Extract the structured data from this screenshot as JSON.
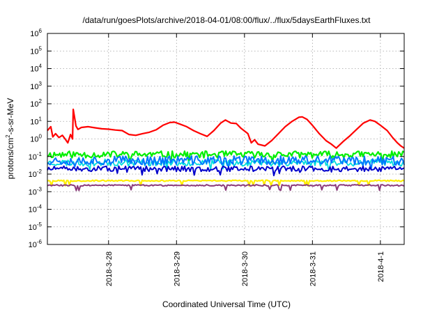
{
  "chart_data": {
    "type": "line",
    "title": "/data/run/goesPlots/archive/2018-04-01/08:00/flux/../flux/5daysEarthFluxes.txt",
    "xlabel": "Coordinated Universal Time (UTC)",
    "ylabel": "protons/cm2-s-sr-MeV",
    "ylabel_parts": {
      "pre": "protons/cm",
      "sup": "2",
      "post": "-s-sr-MeV"
    },
    "yscale": "log",
    "ylim_exponents": [
      -6,
      6
    ],
    "y_tick_base": "10",
    "y_tick_exponents": [
      "-6",
      "-5",
      "-4",
      "-3",
      "-2",
      "-1",
      "0",
      "1",
      "2",
      "3",
      "4",
      "5",
      "6"
    ],
    "x_range_days": [
      27.1,
      32.35
    ],
    "x_ticks": [
      {
        "label": "2018-3-28",
        "day": 28
      },
      {
        "label": "2018-3-29",
        "day": 29
      },
      {
        "label": "2018-3-30",
        "day": 30
      },
      {
        "label": "2018-3-31",
        "day": 31
      },
      {
        "label": "2018-4-1",
        "day": 32
      }
    ],
    "grid": true,
    "legend": "none",
    "series": [
      {
        "color": "#ff0000",
        "width": 2.2,
        "points": [
          [
            27.1,
            3.0
          ],
          [
            27.15,
            5.0
          ],
          [
            27.18,
            1.3
          ],
          [
            27.22,
            2.0
          ],
          [
            27.27,
            1.2
          ],
          [
            27.32,
            1.6
          ],
          [
            27.37,
            0.9
          ],
          [
            27.4,
            0.6
          ],
          [
            27.44,
            1.8
          ],
          [
            27.47,
            1.0
          ],
          [
            27.48,
            48
          ],
          [
            27.52,
            5.5
          ],
          [
            27.55,
            3.5
          ],
          [
            27.6,
            4.5
          ],
          [
            27.7,
            5.0
          ],
          [
            27.8,
            4.3
          ],
          [
            27.9,
            3.8
          ],
          [
            28.0,
            3.6
          ],
          [
            28.1,
            3.2
          ],
          [
            28.2,
            3.0
          ],
          [
            28.3,
            1.8
          ],
          [
            28.4,
            1.6
          ],
          [
            28.5,
            2.0
          ],
          [
            28.6,
            2.4
          ],
          [
            28.7,
            3.3
          ],
          [
            28.8,
            6.0
          ],
          [
            28.9,
            8.5
          ],
          [
            28.97,
            9.0
          ],
          [
            29.05,
            7.0
          ],
          [
            29.15,
            5.0
          ],
          [
            29.25,
            3.0
          ],
          [
            29.35,
            2.0
          ],
          [
            29.45,
            1.4
          ],
          [
            29.55,
            3.0
          ],
          [
            29.65,
            8.0
          ],
          [
            29.72,
            12.0
          ],
          [
            29.8,
            8.0
          ],
          [
            29.88,
            7.5
          ],
          [
            29.95,
            4.0
          ],
          [
            30.05,
            2.0
          ],
          [
            30.1,
            0.6
          ],
          [
            30.15,
            0.9
          ],
          [
            30.2,
            0.5
          ],
          [
            30.3,
            0.4
          ],
          [
            30.4,
            0.8
          ],
          [
            30.5,
            2.0
          ],
          [
            30.6,
            5.0
          ],
          [
            30.7,
            10.0
          ],
          [
            30.8,
            17.0
          ],
          [
            30.85,
            18.0
          ],
          [
            30.92,
            13.0
          ],
          [
            31.0,
            6.0
          ],
          [
            31.1,
            2.0
          ],
          [
            31.2,
            0.8
          ],
          [
            31.28,
            0.5
          ],
          [
            31.35,
            0.3
          ],
          [
            31.45,
            0.7
          ],
          [
            31.55,
            1.5
          ],
          [
            31.65,
            3.5
          ],
          [
            31.75,
            8.0
          ],
          [
            31.85,
            12.0
          ],
          [
            31.92,
            10.0
          ],
          [
            32.0,
            6.0
          ],
          [
            32.1,
            3.0
          ],
          [
            32.18,
            1.2
          ],
          [
            32.25,
            0.6
          ],
          [
            32.3,
            0.4
          ],
          [
            32.35,
            0.3
          ]
        ]
      },
      {
        "color": "#00ee00",
        "width": 2.2,
        "base": 0.13,
        "amp": 0.28,
        "seed": 11
      },
      {
        "color": "#00dddd",
        "width": 1.8,
        "base": 0.045,
        "amp": 0.28,
        "seed": 23
      },
      {
        "color": "#0077ff",
        "width": 2.0,
        "base": 0.06,
        "amp": 0.38,
        "seed": 37
      },
      {
        "color": "#0000cc",
        "width": 2.0,
        "base": 0.02,
        "amp": 0.22,
        "seed": 51
      },
      {
        "color": "#ffee00",
        "width": 2.2,
        "base": 0.0042,
        "amp": 0.05,
        "seed": 67
      },
      {
        "color": "#8b3a7a",
        "width": 2.0,
        "base": 0.0023,
        "amp": 0.06,
        "seed": 83
      }
    ]
  }
}
